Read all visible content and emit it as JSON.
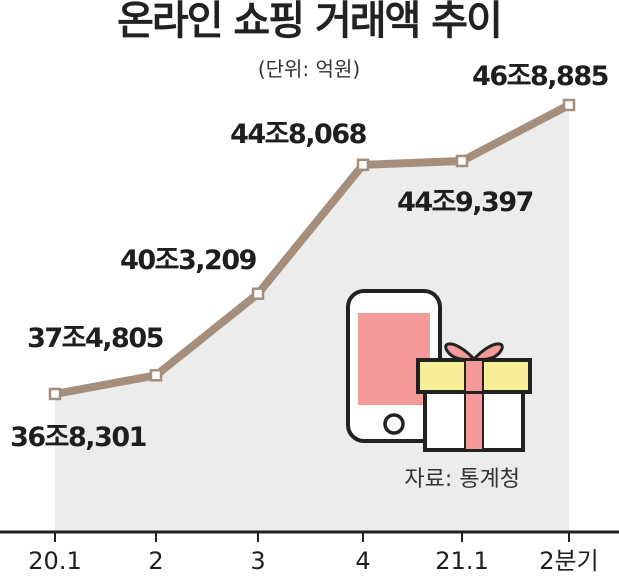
{
  "chart_data": {
    "type": "line",
    "title": "온라인 쇼핑 거래액 추이",
    "subtitle": "(단위: 억원)",
    "categories": [
      "20.1",
      "2",
      "3",
      "4",
      "21.1",
      "2분기"
    ],
    "series": [
      {
        "values": [
          368301,
          374805,
          403209,
          448068,
          449397,
          468885
        ],
        "labels": [
          "36조8,301",
          "37조4,805",
          "40조3,209",
          "44조8,068",
          "44조9,397",
          "46조8,885"
        ]
      }
    ],
    "source": "자료: 통계청",
    "grid": false,
    "legend": "none"
  },
  "colors": {
    "line": "#a58f7c",
    "area": "#ececec",
    "marker_fill": "#ffffff",
    "axis": "#222222",
    "phone": "#f49a98",
    "gift_lid": "#f7ee9a",
    "ribbon": "#f49a98"
  },
  "icons": [
    "smartphone-icon",
    "gift-box-icon"
  ]
}
